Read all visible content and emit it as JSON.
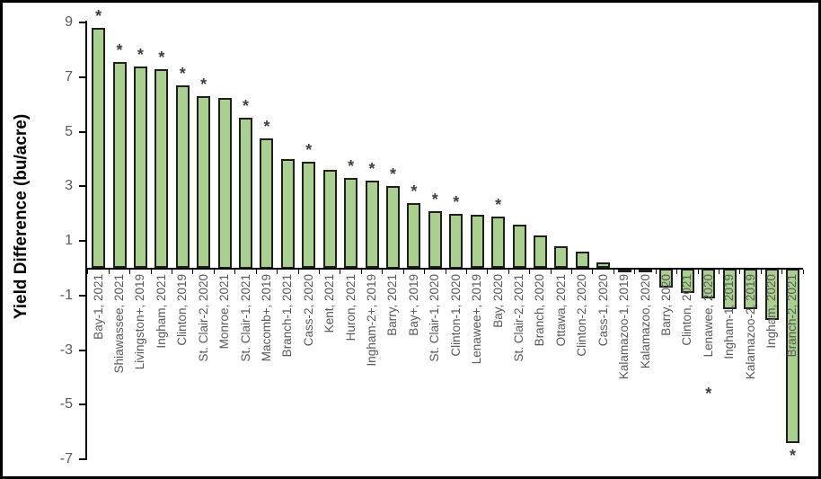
{
  "chart_data": {
    "type": "bar",
    "title": "",
    "xlabel": "",
    "ylabel": "Yield Difference (bu/acre)",
    "ylim": [
      -7,
      9
    ],
    "y_ticks": [
      9,
      7,
      5,
      3,
      1,
      -1,
      -3,
      -5,
      -7
    ],
    "grid": false,
    "legend": "none",
    "significance_marker": "*",
    "categories": [
      "Bay-1, 2021",
      "Shiawassee, 2021",
      "Livingston+, 2019",
      "Ingham, 2021",
      "Clinton, 2019",
      "St. Clair-2, 2020",
      "Monroe, 2021",
      "St. Clair-1, 2021",
      "Macomb+, 2019",
      "Branch-1, 2021",
      "Cass-2, 2020",
      "Kent, 2021",
      "Huron, 2021",
      "Ingham-2+, 2019",
      "Barry, 2021",
      "Bay+, 2019",
      "St. Clair-1, 2020",
      "Clinton-1, 2020",
      "Lenawee+, 2019",
      "Bay, 2020",
      "St. Clair-2, 2021",
      "Branch, 2020",
      "Ottawa, 2021",
      "Clinton-2, 2020",
      "Cass-1, 2020",
      "Kalamazoo-1, 2019",
      "Kalamazoo, 2020",
      "Barry, 2020",
      "Clinton, 2021",
      "Lenawee, 2020",
      "Ingham-1, 2019",
      "Kalamazoo-2, 2019",
      "Ingham, 2020",
      "Branch-2, 2021"
    ],
    "values": [
      8.8,
      7.55,
      7.4,
      7.3,
      6.7,
      6.3,
      6.25,
      5.5,
      4.75,
      4.0,
      3.9,
      3.6,
      3.3,
      3.2,
      3.0,
      2.4,
      2.1,
      2.0,
      1.95,
      1.9,
      1.6,
      1.2,
      0.8,
      0.6,
      0.2,
      -0.1,
      -0.1,
      -0.7,
      -0.9,
      -1.1,
      -1.5,
      -1.5,
      -1.9,
      -6.4
    ],
    "significant": [
      true,
      true,
      true,
      true,
      true,
      true,
      false,
      true,
      true,
      false,
      true,
      false,
      true,
      true,
      true,
      true,
      true,
      true,
      false,
      true,
      false,
      false,
      false,
      false,
      false,
      false,
      false,
      false,
      false,
      true,
      false,
      false,
      false,
      true
    ]
  },
  "colors": {
    "background": "#FFFFFF",
    "frame_border": "#000000",
    "bar_fill": "#A9D08E",
    "bar_border": "#1F1F1F",
    "axis": "#000000",
    "y_tick_label": "#595959",
    "category_label": "#595959",
    "asterisk": "#3F3F3F",
    "axis_title": "#000000"
  }
}
